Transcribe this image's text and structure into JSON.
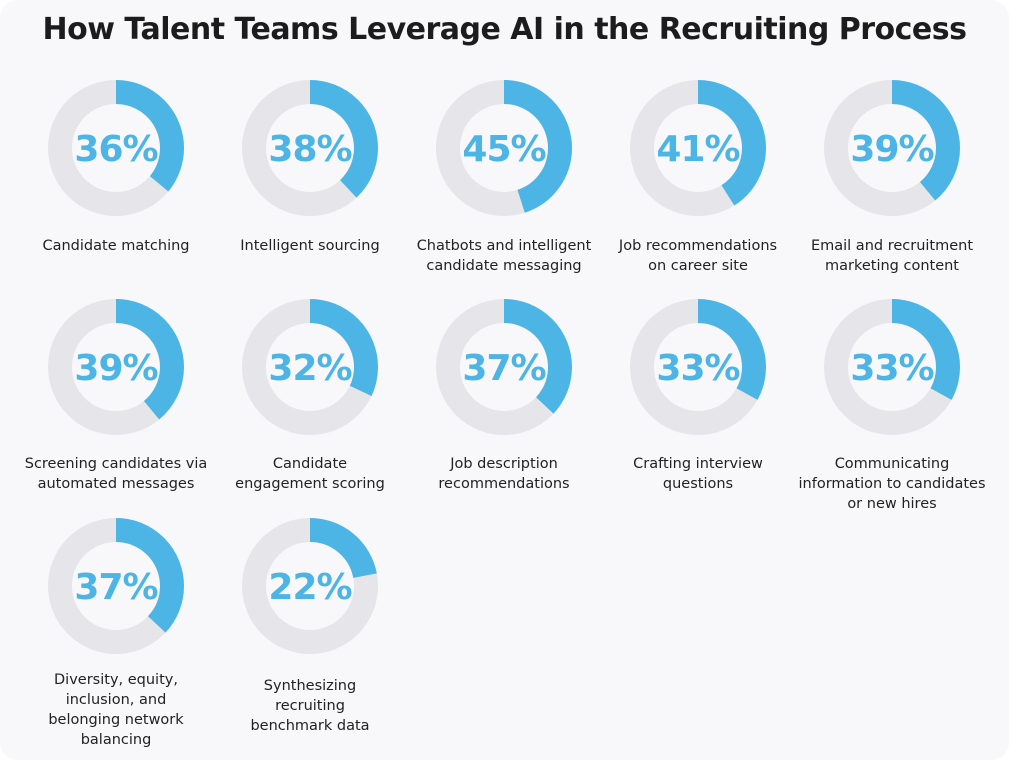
{
  "title": "How Talent Teams Leverage AI in the Recruiting Process",
  "colors": {
    "accent": "#4db5e6",
    "track": "#e6e6ea",
    "text": "#222222",
    "background": "#f8f8fb"
  },
  "chart_data": {
    "type": "donut-grid",
    "title": "How Talent Teams Leverage AI in the Recruiting Process",
    "unit": "%",
    "items": [
      {
        "label": "Candidate matching",
        "value": 36,
        "display": "36%"
      },
      {
        "label": "Intelligent sourcing",
        "value": 38,
        "display": "38%"
      },
      {
        "label": "Chatbots and intelligent\ncandidate messaging",
        "value": 45,
        "display": "45%"
      },
      {
        "label": "Job recommendations\non career site",
        "value": 41,
        "display": "41%"
      },
      {
        "label": "Email and recruitment\nmarketing content",
        "value": 39,
        "display": "39%"
      },
      {
        "label": "Screening candidates via\nautomated messages",
        "value": 39,
        "display": "39%"
      },
      {
        "label": "Candidate\nengagement scoring",
        "value": 32,
        "display": "32%"
      },
      {
        "label": "Job description\nrecommendations",
        "value": 37,
        "display": "37%"
      },
      {
        "label": "Crafting interview\nquestions",
        "value": 33,
        "display": "33%"
      },
      {
        "label": "Communicating\ninformation to candidates\nor new hires",
        "value": 33,
        "display": "33%"
      },
      {
        "label": "Diversity, equity,\ninclusion, and\nbelonging network\nbalancing",
        "value": 37,
        "display": "37%"
      },
      {
        "label": "Synthesizing\nrecruiting\nbenchmark data",
        "value": 22,
        "display": "22%"
      }
    ]
  }
}
